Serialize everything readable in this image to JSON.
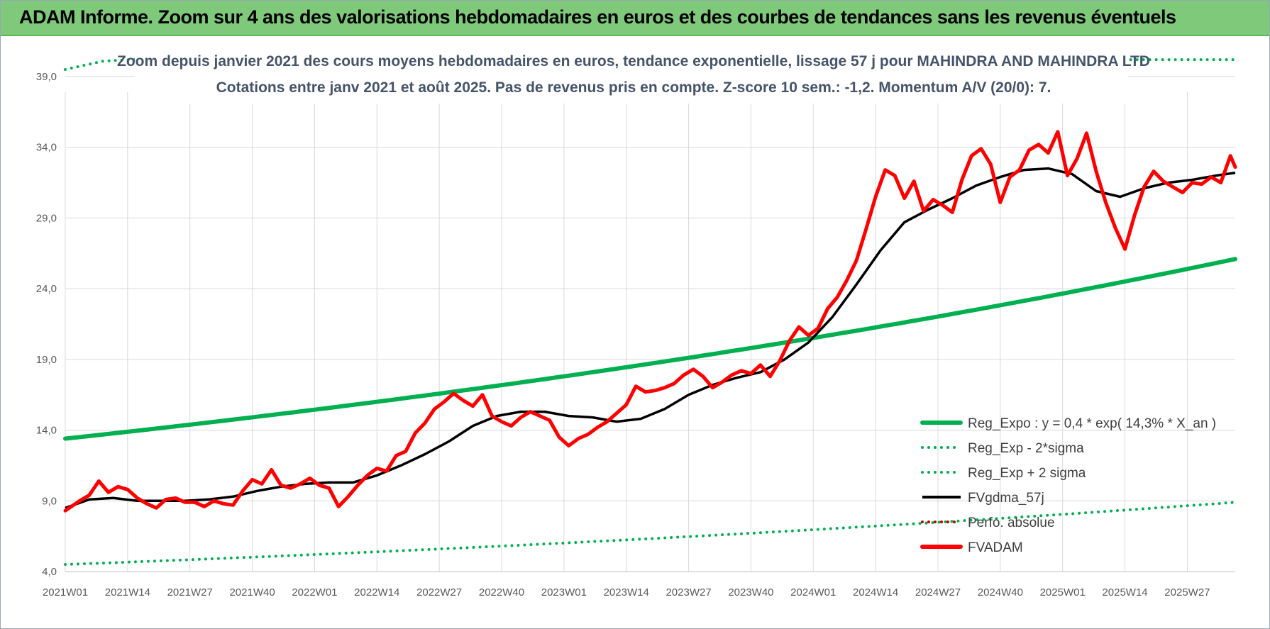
{
  "header": {
    "title": "ADAM Informe. Zoom sur 4 ans des valorisations hebdomadaires en euros et des courbes de tendances sans les revenus éventuels"
  },
  "chart_data": {
    "type": "line",
    "title": "Zoom depuis janvier 2021 des cours moyens hebdomadaires en euros, tendance exponentielle, lissage 57 j pour MAHINDRA AND MAHINDRA LTD",
    "subtitle": "Cotations entre janv 2021 et août 2025. Pas de revenus pris en compte. Z-score 10 sem.: -1,2. Momentum A/V (20/0): 7.",
    "xlabel": "",
    "ylabel": "",
    "ylim": [
      4,
      40.5
    ],
    "yticks": [
      "39,0",
      "34,0",
      "29,0",
      "24,0",
      "19,0",
      "14,0",
      "9,0",
      "4,0"
    ],
    "ytick_values": [
      39,
      34,
      29,
      24,
      19,
      14,
      9,
      4
    ],
    "xticks": [
      "2021W01",
      "2021W14",
      "2021W27",
      "2021W40",
      "2022W01",
      "2022W14",
      "2022W27",
      "2022W40",
      "2023W01",
      "2023W14",
      "2023W27",
      "2023W40",
      "2024W01",
      "2024W14",
      "2024W27",
      "2024W40",
      "2025W01",
      "2025W14",
      "2025W27"
    ],
    "xtick_weeks": [
      0,
      13,
      26,
      39,
      52,
      65,
      78,
      91,
      104,
      117,
      130,
      143,
      156,
      169,
      182,
      195,
      208,
      221,
      234
    ],
    "x_max_week": 244,
    "grid": true,
    "legend_position": "bottom-right",
    "series": [
      {
        "name": "Reg_Expo : y = 0,4 * exp( 14,3% *  X_an )",
        "color": "#00b050",
        "style": "solid",
        "x": [
          0,
          60,
          120,
          180,
          244
        ],
        "y": [
          13.4,
          15.8,
          18.4,
          21.8,
          26.1
        ]
      },
      {
        "name": "Reg_Exp - 2*sigma",
        "color": "#00b050",
        "style": "dotted",
        "x": [
          0,
          60,
          120,
          180,
          244
        ],
        "y": [
          4.5,
          5.4,
          6.4,
          7.5,
          8.9
        ]
      },
      {
        "name": "Reg_Exp + 2 sigma",
        "color": "#00b050",
        "style": "dotted",
        "x": [
          0,
          4,
          8,
          14,
          244
        ],
        "y": [
          39.5,
          39.8,
          40.1,
          40.2,
          40.2
        ]
      },
      {
        "name": "FVgdma_57j",
        "color": "#000000",
        "style": "solid",
        "x": [
          0,
          5,
          10,
          15,
          20,
          25,
          30,
          35,
          40,
          45,
          50,
          55,
          60,
          65,
          70,
          75,
          80,
          85,
          90,
          95,
          100,
          105,
          110,
          115,
          120,
          125,
          130,
          135,
          140,
          145,
          150,
          155,
          160,
          165,
          170,
          175,
          180,
          185,
          190,
          195,
          200,
          205,
          210,
          215,
          220,
          225,
          230,
          235,
          240,
          244
        ],
        "y": [
          8.5,
          9.1,
          9.2,
          9.0,
          9.0,
          9.0,
          9.1,
          9.3,
          9.7,
          10.0,
          10.2,
          10.3,
          10.3,
          10.8,
          11.5,
          12.3,
          13.2,
          14.3,
          15.0,
          15.3,
          15.3,
          15.0,
          14.9,
          14.6,
          14.8,
          15.5,
          16.5,
          17.2,
          17.7,
          18.1,
          19.0,
          20.2,
          22.0,
          24.3,
          26.7,
          28.7,
          29.6,
          30.4,
          31.3,
          31.9,
          32.4,
          32.5,
          32.1,
          30.9,
          30.5,
          31.1,
          31.5,
          31.7,
          32.0,
          32.2
        ]
      },
      {
        "name": "Perfo. absolue",
        "color": "#c00000",
        "style": "dotted",
        "x": [],
        "y": []
      },
      {
        "name": "FVADAM",
        "color": "#ff0000",
        "style": "solid",
        "x": [
          0,
          3,
          5,
          7,
          9,
          11,
          13,
          15,
          17,
          19,
          21,
          23,
          25,
          27,
          29,
          31,
          33,
          35,
          37,
          39,
          41,
          43,
          45,
          47,
          49,
          51,
          53,
          55,
          57,
          59,
          61,
          63,
          65,
          67,
          69,
          71,
          73,
          75,
          77,
          79,
          81,
          83,
          85,
          87,
          89,
          91,
          93,
          95,
          97,
          99,
          101,
          103,
          105,
          107,
          109,
          111,
          113,
          115,
          117,
          119,
          121,
          123,
          125,
          127,
          129,
          131,
          133,
          135,
          137,
          139,
          141,
          143,
          145,
          147,
          149,
          151,
          153,
          155,
          157,
          159,
          161,
          163,
          165,
          167,
          169,
          171,
          173,
          175,
          177,
          179,
          181,
          183,
          185,
          187,
          189,
          191,
          193,
          195,
          197,
          199,
          201,
          203,
          205,
          207,
          209,
          211,
          213,
          215,
          217,
          219,
          221,
          223,
          225,
          227,
          229,
          231,
          233,
          235,
          237,
          239,
          241,
          243,
          244
        ],
        "y": [
          8.3,
          9.0,
          9.4,
          10.4,
          9.6,
          10.0,
          9.8,
          9.2,
          8.8,
          8.5,
          9.1,
          9.2,
          8.9,
          8.9,
          8.6,
          9.0,
          8.8,
          8.7,
          9.7,
          10.5,
          10.2,
          11.2,
          10.1,
          9.9,
          10.2,
          10.6,
          10.1,
          9.9,
          8.6,
          9.3,
          10.1,
          10.8,
          11.3,
          11.1,
          12.2,
          12.5,
          13.8,
          14.5,
          15.5,
          16.0,
          16.6,
          16.1,
          15.7,
          16.5,
          15.0,
          14.6,
          14.3,
          14.9,
          15.3,
          15.0,
          14.7,
          13.5,
          12.9,
          13.4,
          13.7,
          14.2,
          14.6,
          15.2,
          15.8,
          17.1,
          16.7,
          16.8,
          17.0,
          17.3,
          17.9,
          18.3,
          17.8,
          17.0,
          17.4,
          17.9,
          18.2,
          18.0,
          18.6,
          17.8,
          18.9,
          20.3,
          21.3,
          20.7,
          21.2,
          22.6,
          23.4,
          24.6,
          26.0,
          28.2,
          30.5,
          32.4,
          32.0,
          30.4,
          31.6,
          29.5,
          30.3,
          29.9,
          29.4,
          31.7,
          33.4,
          33.9,
          32.8,
          30.1,
          31.9,
          32.4,
          33.8,
          34.2,
          33.6,
          35.1,
          32.0,
          33.2,
          35.0,
          32.3,
          30.1,
          28.3,
          26.8,
          29.2,
          31.2,
          32.3,
          31.6,
          31.2,
          30.8,
          31.5,
          31.4,
          31.9,
          31.5,
          33.4,
          32.6
        ]
      }
    ]
  }
}
